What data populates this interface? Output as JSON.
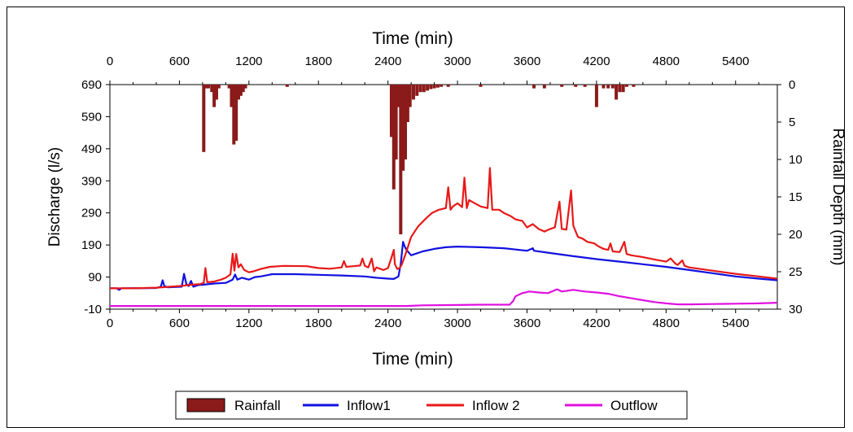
{
  "chart_data": {
    "type": "line",
    "x_top_label": "Time (min)",
    "x_bottom_label": "Time (min)",
    "ylabel_left": "Discharge (l/s)",
    "ylabel_right": "Rainfall Depth (mm)",
    "xlim": [
      0,
      5760
    ],
    "ylim_left": [
      -10,
      690
    ],
    "ylim_right": [
      30,
      0
    ],
    "x_ticks": [
      0,
      600,
      1200,
      1800,
      2400,
      3000,
      3600,
      4200,
      4800,
      5400
    ],
    "x_tick_labels": [
      "0",
      "600",
      "1200",
      "1800",
      "2400",
      "3000",
      "3600",
      "4200",
      "4800",
      "5400"
    ],
    "y_left_ticks": [
      690,
      590,
      490,
      390,
      290,
      190,
      90,
      -10
    ],
    "y_left_tick_labels": [
      "690",
      "590",
      "490",
      "390",
      "290",
      "190",
      "90",
      "-10"
    ],
    "y_right_ticks": [
      0,
      5,
      10,
      15,
      20,
      25,
      30
    ],
    "y_right_tick_labels": [
      "0",
      "5",
      "10",
      "15",
      "20",
      "25",
      "30"
    ],
    "grid": false,
    "legend_position": "bottom",
    "rainfall": {
      "name": "Rainfall",
      "color": "#8b1a1a",
      "points": [
        [
          810,
          9
        ],
        [
          830,
          0.5
        ],
        [
          850,
          0.5
        ],
        [
          880,
          1
        ],
        [
          900,
          3
        ],
        [
          920,
          2
        ],
        [
          940,
          0.5
        ],
        [
          1030,
          0.5
        ],
        [
          1050,
          3
        ],
        [
          1070,
          8
        ],
        [
          1090,
          7.5
        ],
        [
          1110,
          2
        ],
        [
          1130,
          1.5
        ],
        [
          1150,
          1
        ],
        [
          1170,
          0.5
        ],
        [
          1530,
          0.3
        ],
        [
          2430,
          7
        ],
        [
          2450,
          14
        ],
        [
          2470,
          10
        ],
        [
          2490,
          3
        ],
        [
          2510,
          20
        ],
        [
          2530,
          11.5
        ],
        [
          2550,
          10
        ],
        [
          2570,
          5
        ],
        [
          2590,
          3
        ],
        [
          2620,
          2
        ],
        [
          2650,
          1.5
        ],
        [
          2680,
          1
        ],
        [
          2710,
          1
        ],
        [
          2740,
          0.8
        ],
        [
          2770,
          0.6
        ],
        [
          2800,
          0.5
        ],
        [
          2830,
          0.4
        ],
        [
          2860,
          0.3
        ],
        [
          2920,
          0.3
        ],
        [
          3200,
          0.3
        ],
        [
          3660,
          0.5
        ],
        [
          3750,
          0.5
        ],
        [
          3900,
          0.3
        ],
        [
          4020,
          0.3
        ],
        [
          4100,
          0.3
        ],
        [
          4200,
          3
        ],
        [
          4260,
          0.5
        ],
        [
          4300,
          0.5
        ],
        [
          4340,
          0.5
        ],
        [
          4370,
          2
        ],
        [
          4400,
          1
        ],
        [
          4430,
          1
        ],
        [
          4460,
          0.3
        ],
        [
          4520,
          0.3
        ]
      ]
    },
    "series": [
      {
        "name": "Inflow1",
        "color": "#1010e0",
        "points": [
          [
            0,
            55
          ],
          [
            60,
            55
          ],
          [
            80,
            50
          ],
          [
            100,
            55
          ],
          [
            400,
            56
          ],
          [
            440,
            60
          ],
          [
            455,
            80
          ],
          [
            470,
            62
          ],
          [
            500,
            58
          ],
          [
            620,
            60
          ],
          [
            640,
            100
          ],
          [
            660,
            68
          ],
          [
            680,
            62
          ],
          [
            700,
            78
          ],
          [
            720,
            60
          ],
          [
            760,
            65
          ],
          [
            800,
            66
          ],
          [
            900,
            70
          ],
          [
            1000,
            72
          ],
          [
            1060,
            82
          ],
          [
            1080,
            98
          ],
          [
            1100,
            82
          ],
          [
            1140,
            88
          ],
          [
            1200,
            82
          ],
          [
            1250,
            90
          ],
          [
            1300,
            92
          ],
          [
            1360,
            96
          ],
          [
            1400,
            99
          ],
          [
            1600,
            99
          ],
          [
            1800,
            97
          ],
          [
            2000,
            95
          ],
          [
            2200,
            92
          ],
          [
            2300,
            88
          ],
          [
            2400,
            85
          ],
          [
            2450,
            84
          ],
          [
            2490,
            92
          ],
          [
            2510,
            130
          ],
          [
            2530,
            200
          ],
          [
            2545,
            185
          ],
          [
            2560,
            175
          ],
          [
            2600,
            158
          ],
          [
            2700,
            170
          ],
          [
            2800,
            178
          ],
          [
            2900,
            183
          ],
          [
            3000,
            185
          ],
          [
            3200,
            183
          ],
          [
            3400,
            180
          ],
          [
            3600,
            172
          ],
          [
            3650,
            180
          ],
          [
            3660,
            172
          ],
          [
            3800,
            165
          ],
          [
            4000,
            155
          ],
          [
            4200,
            146
          ],
          [
            4400,
            138
          ],
          [
            4600,
            130
          ],
          [
            4800,
            122
          ],
          [
            5000,
            112
          ],
          [
            5200,
            102
          ],
          [
            5400,
            92
          ],
          [
            5600,
            85
          ],
          [
            5760,
            80
          ]
        ]
      },
      {
        "name": "Inflow 2",
        "color": "#e81818",
        "points": [
          [
            0,
            55
          ],
          [
            200,
            55
          ],
          [
            400,
            57
          ],
          [
            600,
            62
          ],
          [
            700,
            66
          ],
          [
            780,
            68
          ],
          [
            810,
            72
          ],
          [
            825,
            118
          ],
          [
            840,
            74
          ],
          [
            900,
            76
          ],
          [
            960,
            82
          ],
          [
            1000,
            88
          ],
          [
            1040,
            98
          ],
          [
            1060,
            163
          ],
          [
            1075,
            110
          ],
          [
            1090,
            162
          ],
          [
            1110,
            120
          ],
          [
            1130,
            130
          ],
          [
            1160,
            112
          ],
          [
            1200,
            105
          ],
          [
            1240,
            108
          ],
          [
            1300,
            115
          ],
          [
            1380,
            122
          ],
          [
            1500,
            125
          ],
          [
            1700,
            124
          ],
          [
            1800,
            118
          ],
          [
            1900,
            116
          ],
          [
            2000,
            120
          ],
          [
            2020,
            140
          ],
          [
            2040,
            122
          ],
          [
            2100,
            124
          ],
          [
            2160,
            126
          ],
          [
            2180,
            148
          ],
          [
            2200,
            125
          ],
          [
            2230,
            120
          ],
          [
            2260,
            148
          ],
          [
            2280,
            108
          ],
          [
            2300,
            120
          ],
          [
            2360,
            112
          ],
          [
            2400,
            118
          ],
          [
            2430,
            150
          ],
          [
            2450,
            175
          ],
          [
            2460,
            130
          ],
          [
            2480,
            115
          ],
          [
            2500,
            118
          ],
          [
            2520,
            130
          ],
          [
            2560,
            170
          ],
          [
            2600,
            215
          ],
          [
            2660,
            248
          ],
          [
            2720,
            270
          ],
          [
            2780,
            290
          ],
          [
            2840,
            300
          ],
          [
            2900,
            305
          ],
          [
            2920,
            370
          ],
          [
            2940,
            300
          ],
          [
            2960,
            310
          ],
          [
            3000,
            320
          ],
          [
            3040,
            308
          ],
          [
            3060,
            400
          ],
          [
            3080,
            305
          ],
          [
            3100,
            330
          ],
          [
            3160,
            318
          ],
          [
            3200,
            310
          ],
          [
            3260,
            305
          ],
          [
            3280,
            430
          ],
          [
            3300,
            300
          ],
          [
            3360,
            300
          ],
          [
            3400,
            290
          ],
          [
            3460,
            280
          ],
          [
            3500,
            270
          ],
          [
            3560,
            265
          ],
          [
            3600,
            245
          ],
          [
            3650,
            255
          ],
          [
            3700,
            240
          ],
          [
            3750,
            232
          ],
          [
            3800,
            240
          ],
          [
            3840,
            245
          ],
          [
            3880,
            325
          ],
          [
            3900,
            240
          ],
          [
            3940,
            238
          ],
          [
            3980,
            360
          ],
          [
            4000,
            250
          ],
          [
            4040,
            215
          ],
          [
            4080,
            210
          ],
          [
            4120,
            200
          ],
          [
            4180,
            195
          ],
          [
            4220,
            185
          ],
          [
            4260,
            178
          ],
          [
            4300,
            175
          ],
          [
            4320,
            195
          ],
          [
            4340,
            170
          ],
          [
            4400,
            168
          ],
          [
            4440,
            200
          ],
          [
            4460,
            162
          ],
          [
            4500,
            158
          ],
          [
            4600,
            152
          ],
          [
            4700,
            145
          ],
          [
            4800,
            138
          ],
          [
            4840,
            148
          ],
          [
            4880,
            132
          ],
          [
            4900,
            128
          ],
          [
            4940,
            142
          ],
          [
            4960,
            125
          ],
          [
            5000,
            120
          ],
          [
            5200,
            110
          ],
          [
            5400,
            100
          ],
          [
            5600,
            92
          ],
          [
            5760,
            85
          ]
        ]
      },
      {
        "name": "Outflow",
        "color": "#e010e0",
        "points": [
          [
            0,
            0
          ],
          [
            2560,
            0
          ],
          [
            2700,
            2
          ],
          [
            3000,
            3
          ],
          [
            3200,
            4
          ],
          [
            3450,
            4
          ],
          [
            3480,
            15
          ],
          [
            3500,
            30
          ],
          [
            3560,
            40
          ],
          [
            3620,
            45
          ],
          [
            3700,
            42
          ],
          [
            3780,
            40
          ],
          [
            3860,
            52
          ],
          [
            3900,
            45
          ],
          [
            4000,
            50
          ],
          [
            4100,
            45
          ],
          [
            4200,
            42
          ],
          [
            4300,
            38
          ],
          [
            4400,
            30
          ],
          [
            4500,
            24
          ],
          [
            4600,
            18
          ],
          [
            4700,
            12
          ],
          [
            4800,
            8
          ],
          [
            4900,
            5
          ],
          [
            5000,
            5
          ],
          [
            5200,
            6
          ],
          [
            5400,
            7
          ],
          [
            5600,
            8
          ],
          [
            5760,
            10
          ]
        ]
      }
    ],
    "legend": [
      {
        "label": "Rainfall",
        "color": "#8b1a1a",
        "kind": "patch"
      },
      {
        "label": "Inflow1",
        "color": "#1010e0",
        "kind": "line"
      },
      {
        "label": "Inflow 2",
        "color": "#e81818",
        "kind": "line"
      },
      {
        "label": "Outflow",
        "color": "#e010e0",
        "kind": "line"
      }
    ]
  }
}
